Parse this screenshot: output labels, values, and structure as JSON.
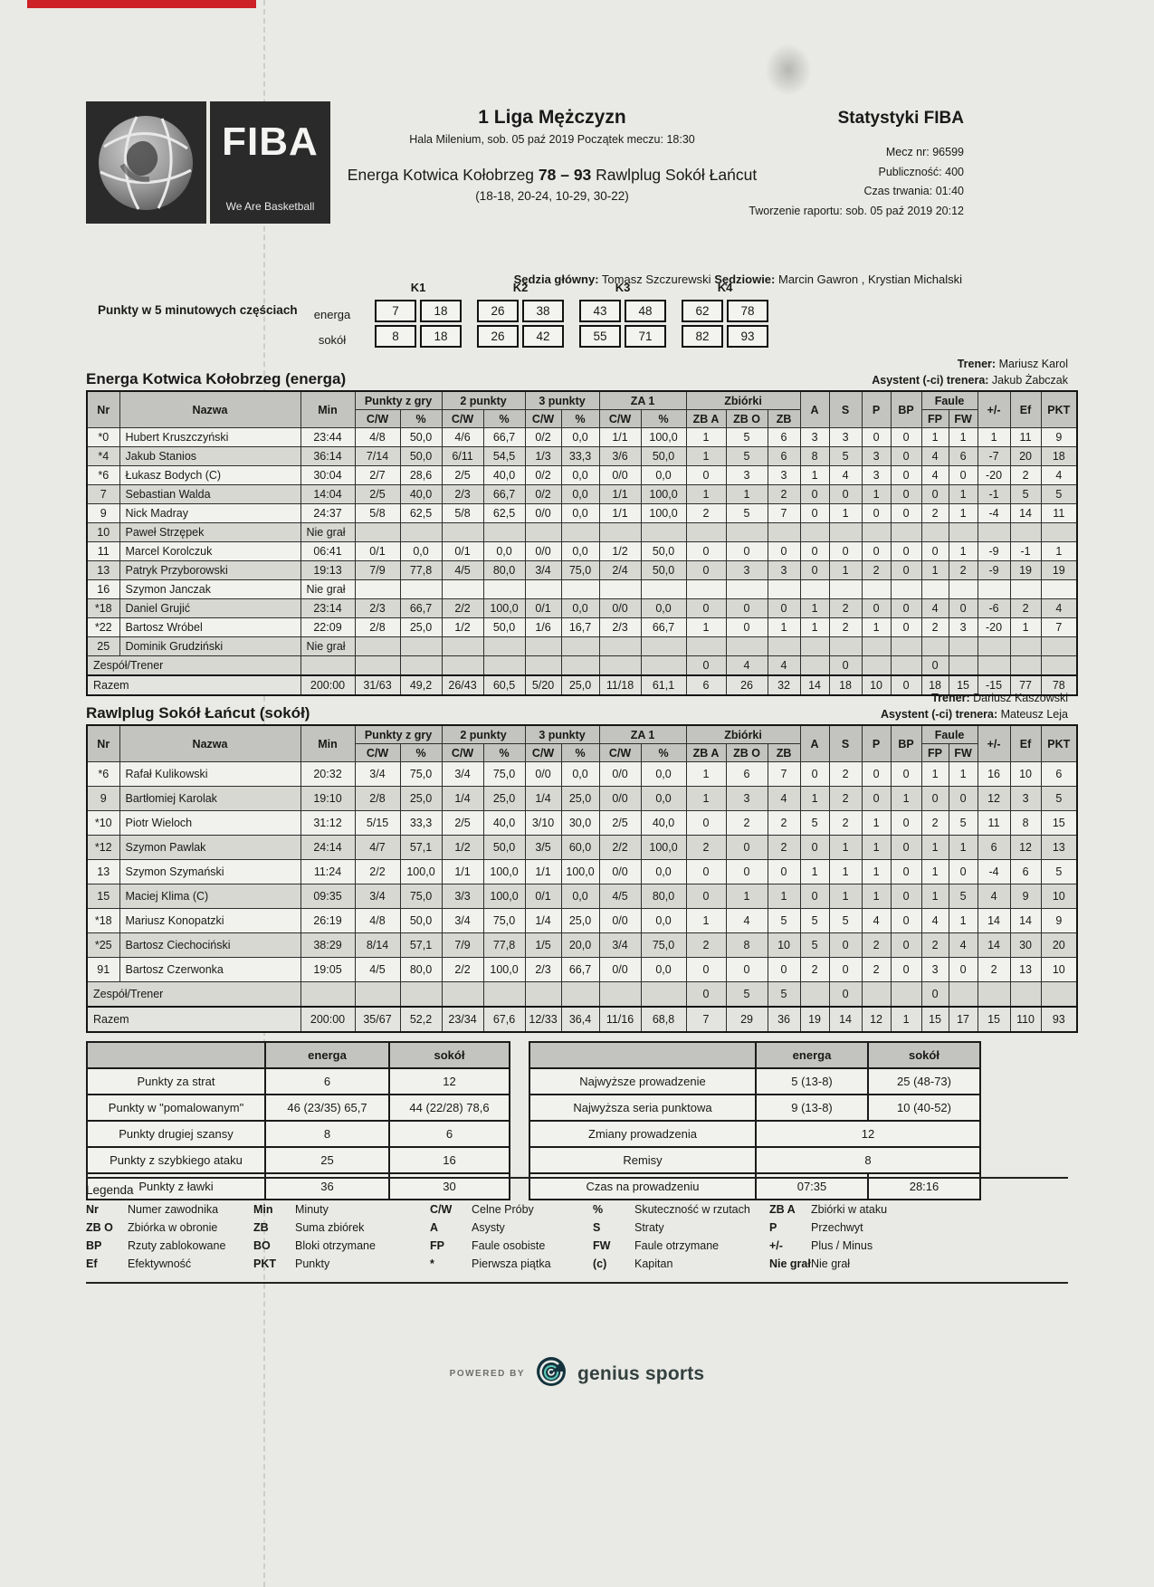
{
  "header": {
    "league": "1 Liga Mężczyzn",
    "venue_line": "Hala Milenium, sob. 05 paź 2019 Początek meczu: 18:30",
    "home_team": "Energa Kotwica Kołobrzeg",
    "score": "78 – 93",
    "away_team": "Rawlplug Sokół Łańcut",
    "quarter_scores": "(18-18, 20-24, 10-29, 30-22)",
    "stats_title": "Statystyki FIBA",
    "match_no": "Mecz nr: 96599",
    "audience": "Publiczność: 400",
    "duration": "Czas trwania: 01:40",
    "report_created": "Tworzenie raportu: sob. 05 paź 2019 20:12",
    "referee_main_label": "Sędzia główny:",
    "referee_main": "Tomasz Szczurewski",
    "referees_label": "Sędziowie:",
    "referees": "Marcin Gawron , Krystian Michalski",
    "fiba_logo_text": "FIBA",
    "fiba_logo_tagline": "We Are Basketball"
  },
  "five_min": {
    "label": "Punkty w 5 minutowych częściach",
    "periods": [
      "K1",
      "K2",
      "K3",
      "K4"
    ],
    "rows": [
      {
        "team": "energa",
        "values": [
          [
            "7",
            "18"
          ],
          [
            "26",
            "38"
          ],
          [
            "43",
            "48"
          ],
          [
            "62",
            "78"
          ]
        ]
      },
      {
        "team": "sokół",
        "values": [
          [
            "8",
            "18"
          ],
          [
            "26",
            "42"
          ],
          [
            "55",
            "71"
          ],
          [
            "82",
            "93"
          ]
        ]
      }
    ]
  },
  "table_headers": {
    "nr": "Nr",
    "nazwa": "Nazwa",
    "min": "Min",
    "groups": {
      "fg": "Punkty z gry",
      "p2": "2 punkty",
      "p3": "3 punkty",
      "ft": "ZA 1",
      "reb": "Zbiórki",
      "fouls": "Faule"
    },
    "cw": "C/W",
    "pct": "%",
    "zba": "ZB A",
    "zbo": "ZB O",
    "zb": "ZB",
    "a": "A",
    "s": "S",
    "p": "P",
    "bp": "BP",
    "fp": "FP",
    "fw": "FW",
    "pm": "+/-",
    "ef": "Ef",
    "pkt": "PKT"
  },
  "teams": [
    {
      "title": "Energa Kotwica Kołobrzeg (energa)",
      "coach_label": "Trener:",
      "coach": "Mariusz Karol",
      "assistant_label": "Asystent (-ci) trenera:",
      "assistant": "Jakub Żabczak",
      "players": [
        {
          "nr": "*0",
          "nazwa": "Hubert Kruszczyński",
          "min": "23:44",
          "fg_cw": "4/8",
          "fg_pct": "50,0",
          "p2_cw": "4/6",
          "p2_pct": "66,7",
          "p3_cw": "0/2",
          "p3_pct": "0,0",
          "ft_cw": "1/1",
          "ft_pct": "100,0",
          "zba": "1",
          "zbo": "5",
          "zb": "6",
          "a": "3",
          "s": "3",
          "p": "0",
          "bp": "0",
          "fp": "1",
          "fw": "1",
          "pm": "1",
          "ef": "11",
          "pkt": "9"
        },
        {
          "nr": "*4",
          "nazwa": "Jakub Stanios",
          "min": "36:14",
          "fg_cw": "7/14",
          "fg_pct": "50,0",
          "p2_cw": "6/11",
          "p2_pct": "54,5",
          "p3_cw": "1/3",
          "p3_pct": "33,3",
          "ft_cw": "3/6",
          "ft_pct": "50,0",
          "zba": "1",
          "zbo": "5",
          "zb": "6",
          "a": "8",
          "s": "5",
          "p": "3",
          "bp": "0",
          "fp": "4",
          "fw": "6",
          "pm": "-7",
          "ef": "20",
          "pkt": "18"
        },
        {
          "nr": "*6",
          "nazwa": "Łukasz Bodych (C)",
          "min": "30:04",
          "fg_cw": "2/7",
          "fg_pct": "28,6",
          "p2_cw": "2/5",
          "p2_pct": "40,0",
          "p3_cw": "0/2",
          "p3_pct": "0,0",
          "ft_cw": "0/0",
          "ft_pct": "0,0",
          "zba": "0",
          "zbo": "3",
          "zb": "3",
          "a": "1",
          "s": "4",
          "p": "3",
          "bp": "0",
          "fp": "4",
          "fw": "0",
          "pm": "-20",
          "ef": "2",
          "pkt": "4"
        },
        {
          "nr": "7",
          "nazwa": "Sebastian Walda",
          "min": "14:04",
          "fg_cw": "2/5",
          "fg_pct": "40,0",
          "p2_cw": "2/3",
          "p2_pct": "66,7",
          "p3_cw": "0/2",
          "p3_pct": "0,0",
          "ft_cw": "1/1",
          "ft_pct": "100,0",
          "zba": "1",
          "zbo": "1",
          "zb": "2",
          "a": "0",
          "s": "0",
          "p": "1",
          "bp": "0",
          "fp": "0",
          "fw": "1",
          "pm": "-1",
          "ef": "5",
          "pkt": "5"
        },
        {
          "nr": "9",
          "nazwa": "Nick Madray",
          "min": "24:37",
          "fg_cw": "5/8",
          "fg_pct": "62,5",
          "p2_cw": "5/8",
          "p2_pct": "62,5",
          "p3_cw": "0/0",
          "p3_pct": "0,0",
          "ft_cw": "1/1",
          "ft_pct": "100,0",
          "zba": "2",
          "zbo": "5",
          "zb": "7",
          "a": "0",
          "s": "1",
          "p": "0",
          "bp": "0",
          "fp": "2",
          "fw": "1",
          "pm": "-4",
          "ef": "14",
          "pkt": "11"
        },
        {
          "nr": "10",
          "nazwa": "Paweł Strzępek",
          "min": "Nie grał"
        },
        {
          "nr": "11",
          "nazwa": "Marcel Korolczuk",
          "min": "06:41",
          "fg_cw": "0/1",
          "fg_pct": "0,0",
          "p2_cw": "0/1",
          "p2_pct": "0,0",
          "p3_cw": "0/0",
          "p3_pct": "0,0",
          "ft_cw": "1/2",
          "ft_pct": "50,0",
          "zba": "0",
          "zbo": "0",
          "zb": "0",
          "a": "0",
          "s": "0",
          "p": "0",
          "bp": "0",
          "fp": "0",
          "fw": "1",
          "pm": "-9",
          "ef": "-1",
          "pkt": "1"
        },
        {
          "nr": "13",
          "nazwa": "Patryk Przyborowski",
          "min": "19:13",
          "fg_cw": "7/9",
          "fg_pct": "77,8",
          "p2_cw": "4/5",
          "p2_pct": "80,0",
          "p3_cw": "3/4",
          "p3_pct": "75,0",
          "ft_cw": "2/4",
          "ft_pct": "50,0",
          "zba": "0",
          "zbo": "3",
          "zb": "3",
          "a": "0",
          "s": "1",
          "p": "2",
          "bp": "0",
          "fp": "1",
          "fw": "2",
          "pm": "-9",
          "ef": "19",
          "pkt": "19"
        },
        {
          "nr": "16",
          "nazwa": "Szymon Janczak",
          "min": "Nie grał"
        },
        {
          "nr": "*18",
          "nazwa": "Daniel Grujić",
          "min": "23:14",
          "fg_cw": "2/3",
          "fg_pct": "66,7",
          "p2_cw": "2/2",
          "p2_pct": "100,0",
          "p3_cw": "0/1",
          "p3_pct": "0,0",
          "ft_cw": "0/0",
          "ft_pct": "0,0",
          "zba": "0",
          "zbo": "0",
          "zb": "0",
          "a": "1",
          "s": "2",
          "p": "0",
          "bp": "0",
          "fp": "4",
          "fw": "0",
          "pm": "-6",
          "ef": "2",
          "pkt": "4"
        },
        {
          "nr": "*22",
          "nazwa": "Bartosz Wróbel",
          "min": "22:09",
          "fg_cw": "2/8",
          "fg_pct": "25,0",
          "p2_cw": "1/2",
          "p2_pct": "50,0",
          "p3_cw": "1/6",
          "p3_pct": "16,7",
          "ft_cw": "2/3",
          "ft_pct": "66,7",
          "zba": "1",
          "zbo": "0",
          "zb": "1",
          "a": "1",
          "s": "2",
          "p": "1",
          "bp": "0",
          "fp": "2",
          "fw": "3",
          "pm": "-20",
          "ef": "1",
          "pkt": "7"
        },
        {
          "nr": "25",
          "nazwa": "Dominik Grudziński",
          "min": "Nie grał"
        }
      ],
      "team_row": {
        "label": "Zespół/Trener",
        "zba": "0",
        "zbo": "4",
        "zb": "4",
        "s": "0",
        "fp": "0"
      },
      "totals": {
        "label": "Razem",
        "min": "200:00",
        "fg_cw": "31/63",
        "fg_pct": "49,2",
        "p2_cw": "26/43",
        "p2_pct": "60,5",
        "p3_cw": "5/20",
        "p3_pct": "25,0",
        "ft_cw": "11/18",
        "ft_pct": "61,1",
        "zba": "6",
        "zbo": "26",
        "zb": "32",
        "a": "14",
        "s": "18",
        "p": "10",
        "bp": "0",
        "fp": "18",
        "fw": "15",
        "pm": "-15",
        "ef": "77",
        "pkt": "78"
      }
    },
    {
      "title": "Rawlplug Sokół Łańcut (sokół)",
      "coach_label": "Trener:",
      "coach": "Dariusz Kaszowski",
      "assistant_label": "Asystent (-ci) trenera:",
      "assistant": "Mateusz Leja",
      "players": [
        {
          "nr": "*6",
          "nazwa": "Rafał Kulikowski",
          "min": "20:32",
          "fg_cw": "3/4",
          "fg_pct": "75,0",
          "p2_cw": "3/4",
          "p2_pct": "75,0",
          "p3_cw": "0/0",
          "p3_pct": "0,0",
          "ft_cw": "0/0",
          "ft_pct": "0,0",
          "zba": "1",
          "zbo": "6",
          "zb": "7",
          "a": "0",
          "s": "2",
          "p": "0",
          "bp": "0",
          "fp": "1",
          "fw": "1",
          "pm": "16",
          "ef": "10",
          "pkt": "6"
        },
        {
          "nr": "9",
          "nazwa": "Bartłomiej Karolak",
          "min": "19:10",
          "fg_cw": "2/8",
          "fg_pct": "25,0",
          "p2_cw": "1/4",
          "p2_pct": "25,0",
          "p3_cw": "1/4",
          "p3_pct": "25,0",
          "ft_cw": "0/0",
          "ft_pct": "0,0",
          "zba": "1",
          "zbo": "3",
          "zb": "4",
          "a": "1",
          "s": "2",
          "p": "0",
          "bp": "1",
          "fp": "0",
          "fw": "0",
          "pm": "12",
          "ef": "3",
          "pkt": "5"
        },
        {
          "nr": "*10",
          "nazwa": "Piotr Wieloch",
          "min": "31:12",
          "fg_cw": "5/15",
          "fg_pct": "33,3",
          "p2_cw": "2/5",
          "p2_pct": "40,0",
          "p3_cw": "3/10",
          "p3_pct": "30,0",
          "ft_cw": "2/5",
          "ft_pct": "40,0",
          "zba": "0",
          "zbo": "2",
          "zb": "2",
          "a": "5",
          "s": "2",
          "p": "1",
          "bp": "0",
          "fp": "2",
          "fw": "5",
          "pm": "11",
          "ef": "8",
          "pkt": "15"
        },
        {
          "nr": "*12",
          "nazwa": "Szymon Pawlak",
          "min": "24:14",
          "fg_cw": "4/7",
          "fg_pct": "57,1",
          "p2_cw": "1/2",
          "p2_pct": "50,0",
          "p3_cw": "3/5",
          "p3_pct": "60,0",
          "ft_cw": "2/2",
          "ft_pct": "100,0",
          "zba": "2",
          "zbo": "0",
          "zb": "2",
          "a": "0",
          "s": "1",
          "p": "1",
          "bp": "0",
          "fp": "1",
          "fw": "1",
          "pm": "6",
          "ef": "12",
          "pkt": "13"
        },
        {
          "nr": "13",
          "nazwa": "Szymon Szymański",
          "min": "11:24",
          "fg_cw": "2/2",
          "fg_pct": "100,0",
          "p2_cw": "1/1",
          "p2_pct": "100,0",
          "p3_cw": "1/1",
          "p3_pct": "100,0",
          "ft_cw": "0/0",
          "ft_pct": "0,0",
          "zba": "0",
          "zbo": "0",
          "zb": "0",
          "a": "1",
          "s": "1",
          "p": "1",
          "bp": "0",
          "fp": "1",
          "fw": "0",
          "pm": "-4",
          "ef": "6",
          "pkt": "5"
        },
        {
          "nr": "15",
          "nazwa": "Maciej Klima (C)",
          "min": "09:35",
          "fg_cw": "3/4",
          "fg_pct": "75,0",
          "p2_cw": "3/3",
          "p2_pct": "100,0",
          "p3_cw": "0/1",
          "p3_pct": "0,0",
          "ft_cw": "4/5",
          "ft_pct": "80,0",
          "zba": "0",
          "zbo": "1",
          "zb": "1",
          "a": "0",
          "s": "1",
          "p": "1",
          "bp": "0",
          "fp": "1",
          "fw": "5",
          "pm": "4",
          "ef": "9",
          "pkt": "10"
        },
        {
          "nr": "*18",
          "nazwa": "Mariusz Konopatzki",
          "min": "26:19",
          "fg_cw": "4/8",
          "fg_pct": "50,0",
          "p2_cw": "3/4",
          "p2_pct": "75,0",
          "p3_cw": "1/4",
          "p3_pct": "25,0",
          "ft_cw": "0/0",
          "ft_pct": "0,0",
          "zba": "1",
          "zbo": "4",
          "zb": "5",
          "a": "5",
          "s": "5",
          "p": "4",
          "bp": "0",
          "fp": "4",
          "fw": "1",
          "pm": "14",
          "ef": "14",
          "pkt": "9"
        },
        {
          "nr": "*25",
          "nazwa": "Bartosz Ciechociński",
          "min": "38:29",
          "fg_cw": "8/14",
          "fg_pct": "57,1",
          "p2_cw": "7/9",
          "p2_pct": "77,8",
          "p3_cw": "1/5",
          "p3_pct": "20,0",
          "ft_cw": "3/4",
          "ft_pct": "75,0",
          "zba": "2",
          "zbo": "8",
          "zb": "10",
          "a": "5",
          "s": "0",
          "p": "2",
          "bp": "0",
          "fp": "2",
          "fw": "4",
          "pm": "14",
          "ef": "30",
          "pkt": "20"
        },
        {
          "nr": "91",
          "nazwa": "Bartosz Czerwonka",
          "min": "19:05",
          "fg_cw": "4/5",
          "fg_pct": "80,0",
          "p2_cw": "2/2",
          "p2_pct": "100,0",
          "p3_cw": "2/3",
          "p3_pct": "66,7",
          "ft_cw": "0/0",
          "ft_pct": "0,0",
          "zba": "0",
          "zbo": "0",
          "zb": "0",
          "a": "2",
          "s": "0",
          "p": "2",
          "bp": "0",
          "fp": "3",
          "fw": "0",
          "pm": "2",
          "ef": "13",
          "pkt": "10"
        }
      ],
      "team_row": {
        "label": "Zespół/Trener",
        "zba": "0",
        "zbo": "5",
        "zb": "5",
        "s": "0",
        "fp": "0"
      },
      "totals": {
        "label": "Razem",
        "min": "200:00",
        "fg_cw": "35/67",
        "fg_pct": "52,2",
        "p2_cw": "23/34",
        "p2_pct": "67,6",
        "p3_cw": "12/33",
        "p3_pct": "36,4",
        "ft_cw": "11/16",
        "ft_pct": "68,8",
        "zba": "7",
        "zbo": "29",
        "zb": "36",
        "a": "19",
        "s": "14",
        "p": "12",
        "bp": "1",
        "fp": "15",
        "fw": "17",
        "pm": "15",
        "ef": "110",
        "pkt": "93"
      }
    }
  ],
  "summary_left": {
    "headers": [
      "energa",
      "sokół"
    ],
    "rows": [
      {
        "label": "Punkty za strat",
        "energa": "6",
        "sokol": "12"
      },
      {
        "label": "Punkty w \"pomalowanym\"",
        "energa": "46 (23/35) 65,7",
        "sokol": "44 (22/28) 78,6"
      },
      {
        "label": "Punkty drugiej szansy",
        "energa": "8",
        "sokol": "6"
      },
      {
        "label": "Punkty z szybkiego ataku",
        "energa": "25",
        "sokol": "16"
      },
      {
        "label": "Punkty z ławki",
        "energa": "36",
        "sokol": "30"
      }
    ]
  },
  "summary_right": {
    "headers": [
      "energa",
      "sokół"
    ],
    "rows": [
      {
        "label": "Najwyższe prowadzenie",
        "energa": "5 (13-8)",
        "sokol": "25 (48-73)"
      },
      {
        "label": "Najwyższa seria punktowa",
        "energa": "9 (13-8)",
        "sokol": "10 (40-52)"
      },
      {
        "label": "Zmiany prowadzenia",
        "merged": "12"
      },
      {
        "label": "Remisy",
        "merged": "8"
      },
      {
        "label": "Czas na prowadzeniu",
        "energa": "07:35",
        "sokol": "28:16"
      }
    ]
  },
  "legend": {
    "title": "Legenda",
    "rows": [
      [
        {
          "k": "Nr",
          "v": "Numer zawodnika"
        },
        {
          "k": "Min",
          "v": "Minuty"
        },
        {
          "k": "C/W",
          "v": "Celne Próby"
        },
        {
          "k": "%",
          "v": "Skuteczność w rzutach"
        },
        {
          "k": "ZB A",
          "v": "Zbiórki w ataku"
        }
      ],
      [
        {
          "k": "ZB O",
          "v": "Zbiórka w obronie"
        },
        {
          "k": "ZB",
          "v": "Suma zbiórek"
        },
        {
          "k": "A",
          "v": "Asysty"
        },
        {
          "k": "S",
          "v": "Straty"
        },
        {
          "k": "P",
          "v": "Przechwyt"
        }
      ],
      [
        {
          "k": "BP",
          "v": "Rzuty zablokowane"
        },
        {
          "k": "BO",
          "v": "Bloki otrzymane"
        },
        {
          "k": "FP",
          "v": "Faule osobiste"
        },
        {
          "k": "FW",
          "v": "Faule otrzymane"
        },
        {
          "k": "+/-",
          "v": "Plus / Minus"
        }
      ],
      [
        {
          "k": "Ef",
          "v": "Efektywność"
        },
        {
          "k": "PKT",
          "v": "Punkty"
        },
        {
          "k": "*",
          "v": "Pierwsza piątka"
        },
        {
          "k": "(c)",
          "v": "Kapitan"
        },
        {
          "k": "Nie grał",
          "v": "Nie grał"
        }
      ]
    ]
  },
  "footer": {
    "powered_by": "POWERED BY",
    "brand": "genius sports"
  },
  "colors": {
    "accent_red": "#cb2127",
    "header_gray": "#c3c4bf",
    "row_alt": "#d7d8d2",
    "logo_dark": "#2a2a2a",
    "brand_circle": "#14333e"
  }
}
